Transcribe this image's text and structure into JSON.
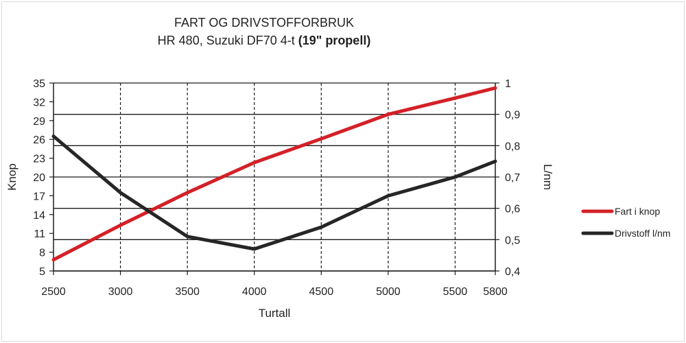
{
  "chart_data": {
    "type": "line",
    "title_line1": "FART OG DRIVSTOFFORBRUK",
    "title_line2_normal": "HR 480, Suzuki DF70 4-t ",
    "title_line2_bold": "(19\" propell)",
    "xlabel": "Turtall",
    "ylabel_left": "Knop",
    "ylabel_right": "L/nm",
    "x_ticks": [
      "2500",
      "3000",
      "3500",
      "4000",
      "4500",
      "5000",
      "5500",
      "5800"
    ],
    "x": [
      2500,
      3000,
      3500,
      4000,
      4500,
      5000,
      5500,
      5800
    ],
    "yleft_ticks": [
      "5",
      "8",
      "11",
      "14",
      "17",
      "20",
      "23",
      "26",
      "29",
      "32",
      "35"
    ],
    "yleft_lim": [
      5,
      35
    ],
    "yright_ticks": [
      "0,4",
      "0,5",
      "0,6",
      "0,7",
      "0,8",
      "0,9",
      "1"
    ],
    "yright_lim": [
      0.4,
      1.0
    ],
    "grid": {
      "horizontal": "solid",
      "vertical": "dashed"
    },
    "legend_position": "right",
    "series": [
      {
        "name": "Fart i knop",
        "axis": "left",
        "color": "#d42027",
        "values": [
          6.8,
          12.3,
          17.5,
          22.3,
          26.1,
          30.0,
          32.6,
          34.2
        ]
      },
      {
        "name": "Drivstoff l/nm",
        "axis": "right",
        "color": "#262626",
        "values": [
          0.83,
          0.65,
          0.51,
          0.47,
          0.54,
          0.64,
          0.7,
          0.75
        ]
      }
    ]
  }
}
